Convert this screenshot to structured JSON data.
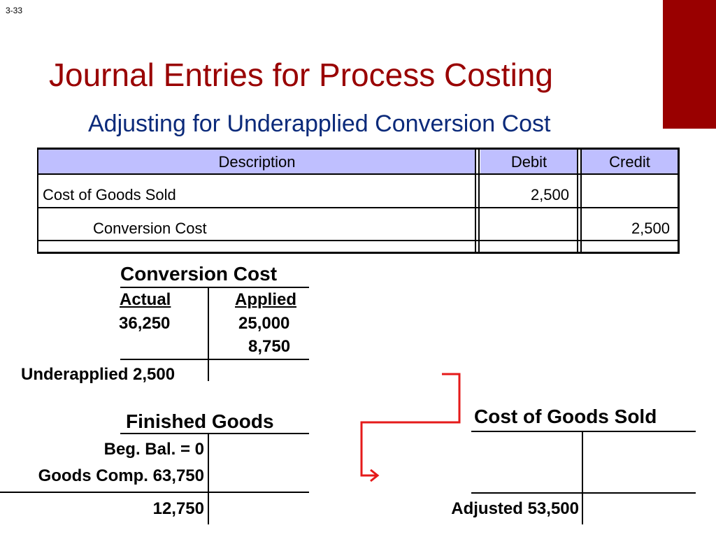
{
  "slide_number": "3-33",
  "title": "Journal Entries for Process Costing",
  "subtitle": "Adjusting for Underapplied Conversion Cost",
  "journal": {
    "headers": [
      "Description",
      "Debit",
      "Credit"
    ],
    "rows": [
      {
        "description": "Cost of Goods Sold",
        "debit": "2,500",
        "credit": ""
      },
      {
        "description": "Conversion Cost",
        "debit": "",
        "credit": "2,500"
      }
    ]
  },
  "conversion_cost_account": {
    "title": "Conversion Cost",
    "left_label": "Actual",
    "right_label": "Applied",
    "left_value": "36,250",
    "right_values": [
      "25,000",
      "8,750"
    ],
    "balance": "Underapplied 2,500"
  },
  "finished_goods_account": {
    "title": "Finished Goods",
    "beg_bal": "Beg. Bal. = 0",
    "goods_comp": "Goods Comp. 63,750",
    "balance": "12,750"
  },
  "cogs_account": {
    "title": "Cost of Goods Sold",
    "balance": "Adjusted 53,500"
  },
  "colors": {
    "title": "#990000",
    "subtitle": "#0b2a7a",
    "header_fill": "#bfbfff",
    "arrow": "#e51a1a",
    "accent_block": "#990000"
  }
}
